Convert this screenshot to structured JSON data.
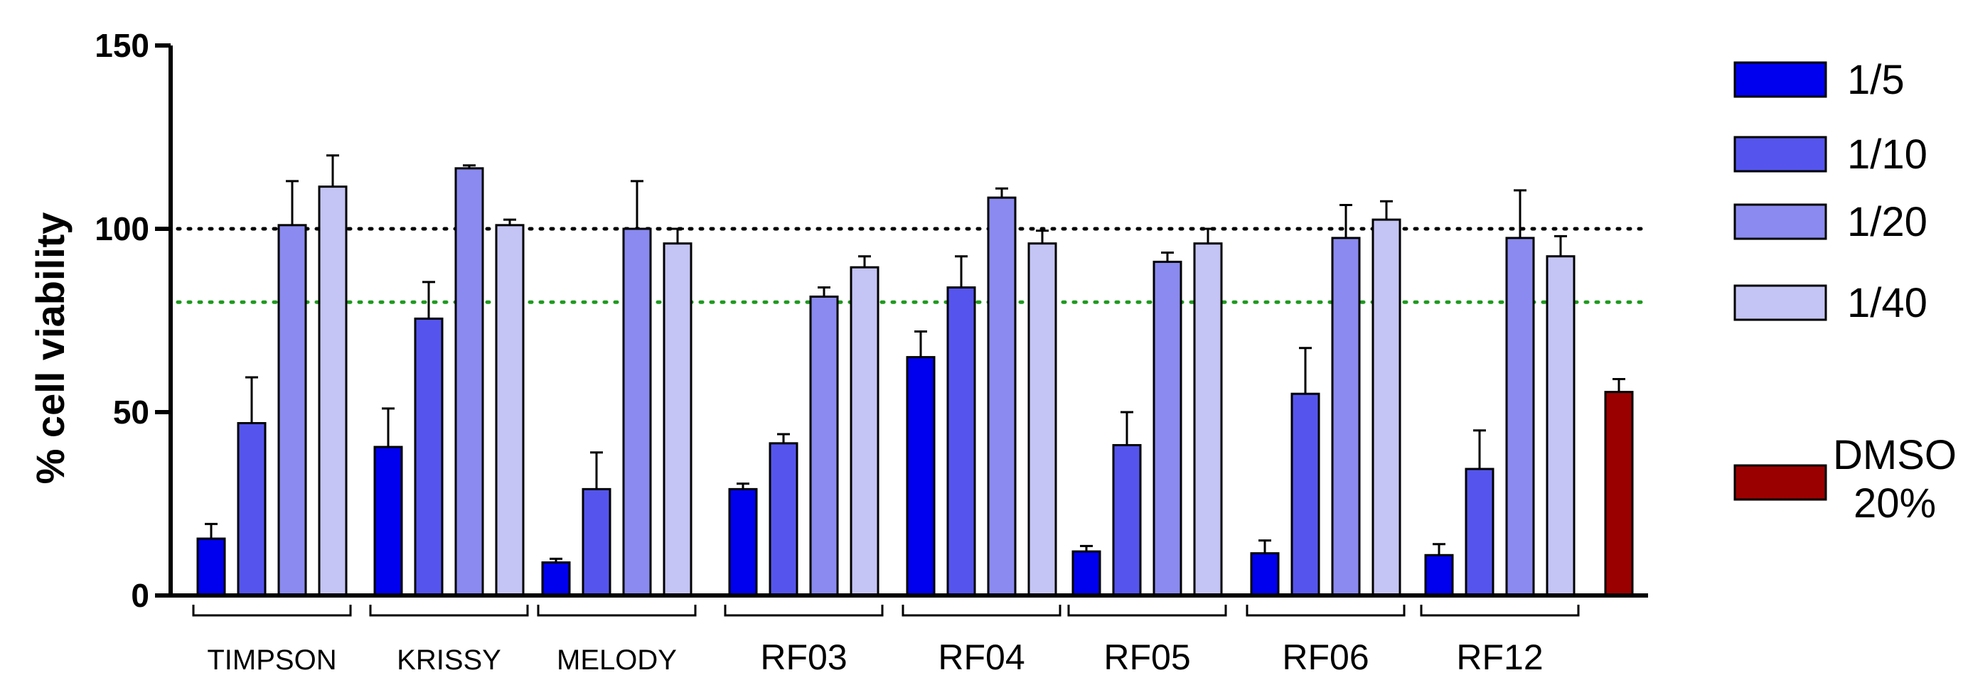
{
  "chart_data": {
    "type": "bar",
    "title": "",
    "xlabel": "",
    "ylabel": "% cell viability",
    "ylim": [
      0,
      150
    ],
    "yticks": [
      0,
      50,
      100,
      150
    ],
    "reference_lines": [
      {
        "value": 100,
        "color": "#000000",
        "style": "dotted"
      },
      {
        "value": 80,
        "color": "#1e9a1e",
        "style": "dotted"
      }
    ],
    "categories": [
      "TIMPSON",
      "KRISSY",
      "MELODY",
      "RF03",
      "RF04",
      "RF05",
      "RF06",
      "RF12"
    ],
    "series": [
      {
        "name": "1/5",
        "color": "#0000ee",
        "values": [
          15.5,
          40.5,
          9,
          29,
          65,
          12,
          11.5,
          11
        ],
        "errors": [
          4,
          10.5,
          1,
          1.5,
          7,
          1.5,
          3.5,
          3
        ]
      },
      {
        "name": "1/10",
        "color": "#5555ee",
        "values": [
          47,
          75.5,
          29,
          41.5,
          84,
          41,
          55,
          34.5
        ],
        "errors": [
          12.5,
          10,
          10,
          2.5,
          8.5,
          9,
          12.5,
          10.5
        ]
      },
      {
        "name": "1/20",
        "color": "#8a8af0",
        "values": [
          101,
          116.5,
          100,
          81.5,
          108.5,
          91,
          97.5,
          97.5
        ],
        "errors": [
          12,
          0.8,
          13,
          2.5,
          2.5,
          2.5,
          9,
          13
        ]
      },
      {
        "name": "1/40",
        "color": "#c4c4f5",
        "values": [
          111.5,
          101,
          96,
          89.5,
          96,
          96,
          102.5,
          92.5
        ],
        "errors": [
          8.5,
          1.5,
          4,
          3,
          3.5,
          4,
          5,
          5.5
        ]
      }
    ],
    "control": {
      "name_line1": "DMSO",
      "name_line2": "20%",
      "color": "#9b0000",
      "value": 55.5,
      "error": 3.5
    }
  }
}
